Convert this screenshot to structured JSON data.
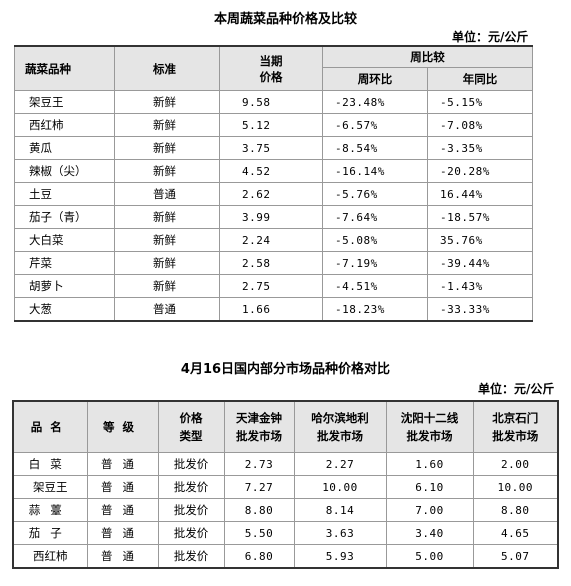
{
  "table1": {
    "title": "本周蔬菜品种价格及比较",
    "unit": "单位：元/公斤",
    "headers": {
      "product": "蔬菜品种",
      "standard": "标准",
      "price_line1": "当期",
      "price_line2": "价格",
      "weekly": "周比较",
      "wow": "周环比",
      "yoy": "年同比"
    },
    "rows": [
      {
        "name": "架豆王",
        "standard": "新鲜",
        "price": "9.58",
        "wow": "-23.48%",
        "yoy": "-5.15%"
      },
      {
        "name": "西红柿",
        "standard": "新鲜",
        "price": "5.12",
        "wow": "-6.57%",
        "yoy": "-7.08%"
      },
      {
        "name": "黄瓜",
        "standard": "新鲜",
        "price": "3.75",
        "wow": "-8.54%",
        "yoy": "-3.35%"
      },
      {
        "name": "辣椒（尖）",
        "standard": "新鲜",
        "price": "4.52",
        "wow": "-16.14%",
        "yoy": "-20.28%"
      },
      {
        "name": "土豆",
        "standard": "普通",
        "price": "2.62",
        "wow": "-5.76%",
        "yoy": "16.44%"
      },
      {
        "name": "茄子（青）",
        "standard": "新鲜",
        "price": "3.99",
        "wow": "-7.64%",
        "yoy": "-18.57%"
      },
      {
        "name": "大白菜",
        "standard": "新鲜",
        "price": "2.24",
        "wow": "-5.08%",
        "yoy": "35.76%"
      },
      {
        "name": "芹菜",
        "standard": "新鲜",
        "price": "2.58",
        "wow": "-7.19%",
        "yoy": "-39.44%"
      },
      {
        "name": "胡萝卜",
        "standard": "新鲜",
        "price": "2.75",
        "wow": "-4.51%",
        "yoy": "-1.43%"
      },
      {
        "name": "大葱",
        "standard": "普通",
        "price": "1.66",
        "wow": "-18.23%",
        "yoy": "-33.33%"
      }
    ]
  },
  "table2": {
    "title": "4月16日国内部分市场品种价格对比",
    "unit": "单位：元/公斤",
    "headers": {
      "name": "品名",
      "grade": "等级",
      "type_line1": "价格",
      "type_line2": "类型",
      "m1_line1": "天津金钟",
      "m1_line2": "批发市场",
      "m2_line1": "哈尔滨地利",
      "m2_line2": "批发市场",
      "m3_line1": "沈阳十二线",
      "m3_line2": "批发市场",
      "m4_line1": "北京石门",
      "m4_line2": "批发市场"
    },
    "rows": [
      {
        "name": "白菜",
        "grade": "普通",
        "type": "批发价",
        "m1": "2.73",
        "m2": "2.27",
        "m3": "1.60",
        "m4": "2.00"
      },
      {
        "name": "架豆王",
        "grade": "普通",
        "type": "批发价",
        "m1": "7.27",
        "m2": "10.00",
        "m3": "6.10",
        "m4": "10.00"
      },
      {
        "name": "蒜薹",
        "grade": "普通",
        "type": "批发价",
        "m1": "8.80",
        "m2": "8.14",
        "m3": "7.00",
        "m4": "8.80"
      },
      {
        "name": "茄子",
        "grade": "普通",
        "type": "批发价",
        "m1": "5.50",
        "m2": "3.63",
        "m3": "3.40",
        "m4": "4.65"
      },
      {
        "name": "西红柿",
        "grade": "普通",
        "type": "批发价",
        "m1": "6.80",
        "m2": "5.93",
        "m3": "5.00",
        "m4": "5.07"
      }
    ]
  }
}
